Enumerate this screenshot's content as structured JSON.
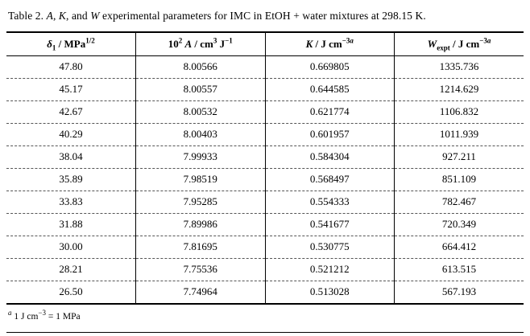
{
  "caption": {
    "t1": "Table 2. ",
    "i1": "A",
    "t2": ", ",
    "i2": "K",
    "t3": ", and ",
    "i3": "W",
    "t4": " experimental parameters for IMC in EtOH + water mixtures at 298.15 K."
  },
  "table": {
    "columns": [
      {
        "name": "delta1",
        "segments": [
          {
            "t": "i",
            "v": "δ"
          },
          {
            "t": "sub",
            "v": "1"
          },
          {
            "t": "n",
            "v": " / MPa"
          },
          {
            "t": "sup",
            "v": "1/2"
          }
        ]
      },
      {
        "name": "coefficient-a",
        "segments": [
          {
            "t": "n",
            "v": "10"
          },
          {
            "t": "sup",
            "v": "2"
          },
          {
            "t": "n",
            "v": " "
          },
          {
            "t": "i",
            "v": "A"
          },
          {
            "t": "n",
            "v": " / cm"
          },
          {
            "t": "sup",
            "v": "3"
          },
          {
            "t": "n",
            "v": " J"
          },
          {
            "t": "sup",
            "v": "−1"
          }
        ]
      },
      {
        "name": "k",
        "segments": [
          {
            "t": "i",
            "v": "K"
          },
          {
            "t": "n",
            "v": " / J cm"
          },
          {
            "t": "sup",
            "v": "−3"
          },
          {
            "t": "supi",
            "v": "a"
          }
        ]
      },
      {
        "name": "w-expt",
        "segments": [
          {
            "t": "i",
            "v": "W"
          },
          {
            "t": "sub",
            "v": "expt"
          },
          {
            "t": "n",
            "v": " / J cm"
          },
          {
            "t": "sup",
            "v": "−3"
          },
          {
            "t": "supi",
            "v": "a"
          }
        ]
      }
    ],
    "rows": [
      [
        "47.80",
        "8.00566",
        "0.669805",
        "1335.736"
      ],
      [
        "45.17",
        "8.00557",
        "0.644585",
        "1214.629"
      ],
      [
        "42.67",
        "8.00532",
        "0.621774",
        "1106.832"
      ],
      [
        "40.29",
        "8.00403",
        "0.601957",
        "1011.939"
      ],
      [
        "38.04",
        "7.99933",
        "0.584304",
        "927.211"
      ],
      [
        "35.89",
        "7.98519",
        "0.568497",
        "851.109"
      ],
      [
        "33.83",
        "7.95285",
        "0.554333",
        "782.467"
      ],
      [
        "31.88",
        "7.89986",
        "0.541677",
        "720.349"
      ],
      [
        "30.00",
        "7.81695",
        "0.530775",
        "664.412"
      ],
      [
        "28.21",
        "7.75536",
        "0.521212",
        "613.515"
      ],
      [
        "26.50",
        "7.74964",
        "0.513028",
        "567.193"
      ]
    ]
  },
  "footnote": {
    "segments": [
      {
        "t": "supi",
        "v": "a"
      },
      {
        "t": "n",
        "v": " 1 J cm"
      },
      {
        "t": "sup",
        "v": "−3"
      },
      {
        "t": "n",
        "v": " = 1 MPa"
      }
    ]
  }
}
